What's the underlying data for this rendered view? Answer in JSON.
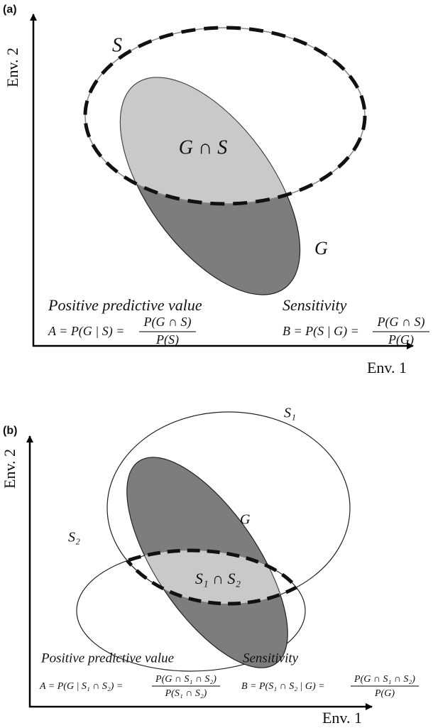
{
  "panels": [
    {
      "tag": "(a)",
      "y_axis": "Env. 2",
      "x_axis": "Env. 1",
      "s_label": "S",
      "intersection_label": "G ∩ S",
      "g_label": "G",
      "left_heading": "Positive predictive value",
      "left_formula": "A = P(G | S) =",
      "left_numerator": "P(G ∩ S)",
      "left_denominator": "P(S)",
      "right_heading": "Sensitivity",
      "right_formula": "B = P(S | G) =",
      "right_numerator": "P(G ∩ S)",
      "right_denominator": "P(G)"
    },
    {
      "tag": "(b)",
      "y_axis": "Env. 2",
      "x_axis": "Env. 1",
      "s1_label": "S₁",
      "s2_label": "S₂",
      "g_label": "G",
      "intersection_label": "S₁ ∩ S₂",
      "left_heading": "Positive predictive value",
      "left_formula": "A = P(G | S₁ ∩ S₂) =",
      "left_numerator": "P(G ∩ S₁ ∩ S₂)",
      "left_denominator": "P(S₁ ∩ S₂)",
      "right_heading": "Sensitivity",
      "right_formula": "B = P(S₁ ∩ S₂ | G) =",
      "right_numerator": "P(G ∩ S₁ ∩ S₂)",
      "right_denominator": "P(G)"
    }
  ]
}
